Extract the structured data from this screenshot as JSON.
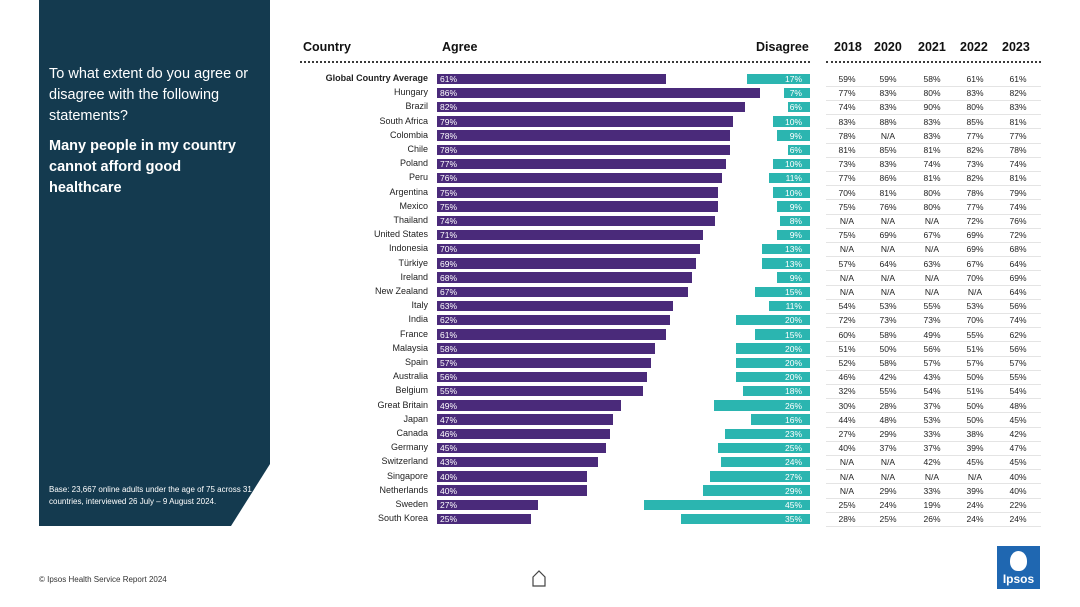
{
  "panel": {
    "question": "To what extent do you agree or disagree with the following statements?",
    "statement": "Many people in my country cannot afford good healthcare",
    "base_note": "Base: 23,667 online adults under the age of 75 across 31 countries, interviewed 26 July – 9 August 2024."
  },
  "headers": {
    "country": "Country",
    "agree": "Agree",
    "disagree": "Disagree",
    "years": [
      "2018",
      "2020",
      "2021",
      "2022",
      "2023"
    ]
  },
  "footer": {
    "source": "© Ipsos Health Service Report 2024",
    "logo_text": "Ipsos"
  },
  "colors": {
    "panel": "#143a4f",
    "agree": "#4a2a7a",
    "disagree": "#2bb5b0",
    "logo": "#1f67b1"
  },
  "chart_data": {
    "type": "bar",
    "title": "Many people in my country cannot afford good healthcare",
    "categories": [
      "Global Country Average",
      "Hungary",
      "Brazil",
      "South Africa",
      "Colombia",
      "Chile",
      "Poland",
      "Peru",
      "Argentina",
      "Mexico",
      "Thailand",
      "United States",
      "Indonesia",
      "Türkiye",
      "Ireland",
      "New Zealand",
      "Italy",
      "India",
      "France",
      "Malaysia",
      "Spain",
      "Australia",
      "Belgium",
      "Great Britain",
      "Japan",
      "Canada",
      "Germany",
      "Switzerland",
      "Singapore",
      "Netherlands",
      "Sweden",
      "South Korea"
    ],
    "series": [
      {
        "name": "Agree",
        "values": [
          61,
          86,
          82,
          79,
          78,
          78,
          77,
          76,
          75,
          75,
          74,
          71,
          70,
          69,
          68,
          67,
          63,
          62,
          61,
          58,
          57,
          56,
          55,
          49,
          47,
          46,
          45,
          43,
          40,
          40,
          27,
          25
        ]
      },
      {
        "name": "Disagree",
        "values": [
          17,
          7,
          6,
          10,
          9,
          6,
          10,
          11,
          10,
          9,
          8,
          9,
          13,
          13,
          9,
          15,
          11,
          20,
          15,
          20,
          20,
          20,
          18,
          26,
          16,
          23,
          25,
          24,
          27,
          29,
          45,
          35
        ]
      }
    ],
    "trend_years": [
      "2018",
      "2020",
      "2021",
      "2022",
      "2023"
    ],
    "trend": [
      [
        "59%",
        "59%",
        "58%",
        "61%",
        "61%"
      ],
      [
        "77%",
        "83%",
        "80%",
        "83%",
        "82%"
      ],
      [
        "74%",
        "83%",
        "90%",
        "80%",
        "83%"
      ],
      [
        "83%",
        "88%",
        "83%",
        "85%",
        "81%"
      ],
      [
        "78%",
        "N/A",
        "83%",
        "77%",
        "77%"
      ],
      [
        "81%",
        "85%",
        "81%",
        "82%",
        "78%"
      ],
      [
        "73%",
        "83%",
        "74%",
        "73%",
        "74%"
      ],
      [
        "77%",
        "86%",
        "81%",
        "82%",
        "81%"
      ],
      [
        "70%",
        "81%",
        "80%",
        "78%",
        "79%"
      ],
      [
        "75%",
        "76%",
        "80%",
        "77%",
        "74%"
      ],
      [
        "N/A",
        "N/A",
        "N/A",
        "72%",
        "76%"
      ],
      [
        "75%",
        "69%",
        "67%",
        "69%",
        "72%"
      ],
      [
        "N/A",
        "N/A",
        "N/A",
        "69%",
        "68%"
      ],
      [
        "57%",
        "64%",
        "63%",
        "67%",
        "64%"
      ],
      [
        "N/A",
        "N/A",
        "N/A",
        "70%",
        "69%"
      ],
      [
        "N/A",
        "N/A",
        "N/A",
        "N/A",
        "64%"
      ],
      [
        "54%",
        "53%",
        "55%",
        "53%",
        "56%"
      ],
      [
        "72%",
        "73%",
        "73%",
        "70%",
        "74%"
      ],
      [
        "60%",
        "58%",
        "49%",
        "55%",
        "62%"
      ],
      [
        "51%",
        "50%",
        "56%",
        "51%",
        "56%"
      ],
      [
        "52%",
        "58%",
        "57%",
        "57%",
        "57%"
      ],
      [
        "46%",
        "42%",
        "43%",
        "50%",
        "55%"
      ],
      [
        "32%",
        "55%",
        "54%",
        "51%",
        "54%"
      ],
      [
        "30%",
        "28%",
        "37%",
        "50%",
        "48%"
      ],
      [
        "44%",
        "48%",
        "53%",
        "50%",
        "45%"
      ],
      [
        "27%",
        "29%",
        "33%",
        "38%",
        "42%"
      ],
      [
        "40%",
        "37%",
        "37%",
        "39%",
        "47%"
      ],
      [
        "N/A",
        "N/A",
        "42%",
        "45%",
        "45%"
      ],
      [
        "N/A",
        "N/A",
        "N/A",
        "N/A",
        "40%"
      ],
      [
        "N/A",
        "29%",
        "33%",
        "39%",
        "40%"
      ],
      [
        "25%",
        "24%",
        "19%",
        "24%",
        "22%"
      ],
      [
        "28%",
        "25%",
        "26%",
        "24%",
        "24%"
      ]
    ],
    "xlim": [
      0,
      100
    ],
    "legend": "top"
  }
}
